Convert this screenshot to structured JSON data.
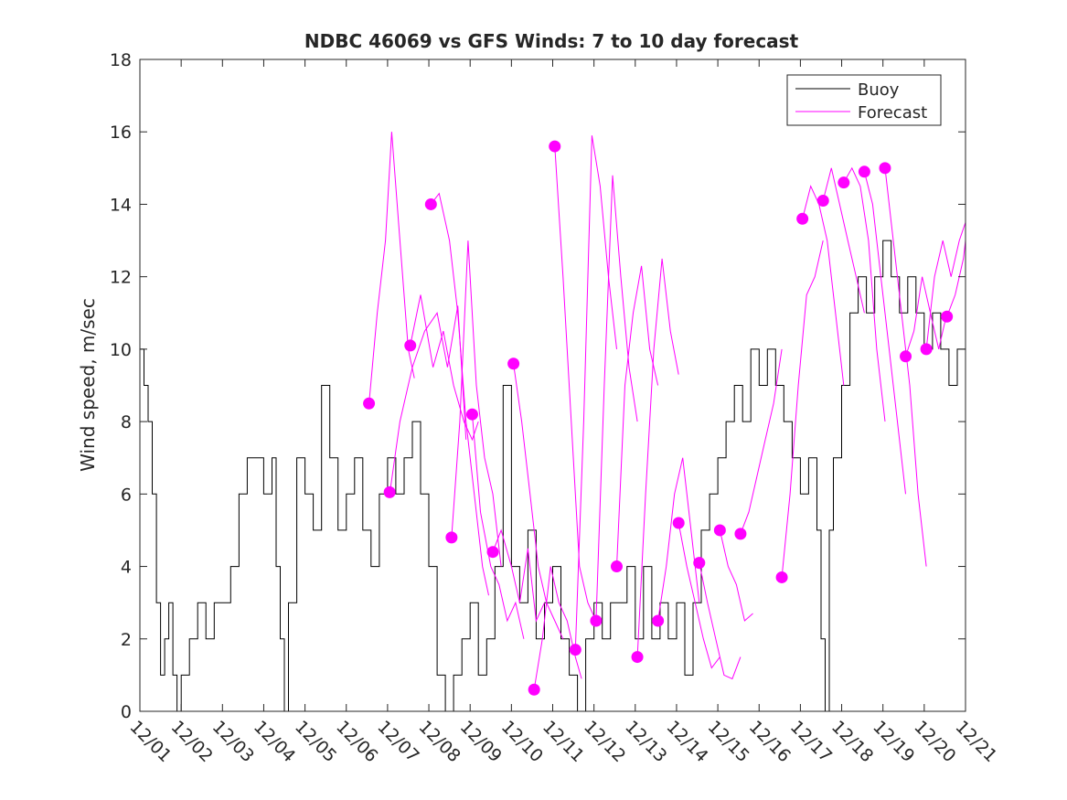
{
  "chart_data": {
    "type": "line",
    "title": "NDBC 46069 vs GFS Winds: 7 to 10 day forecast",
    "xlabel": "",
    "ylabel": "Wind speed, m/sec",
    "xlim": [
      0,
      20
    ],
    "ylim": [
      0,
      18
    ],
    "x_ticks": [
      0,
      1,
      2,
      3,
      4,
      5,
      6,
      7,
      8,
      9,
      10,
      11,
      12,
      13,
      14,
      15,
      16,
      17,
      18,
      19,
      20
    ],
    "x_tick_labels": [
      "12/01",
      "12/02",
      "12/03",
      "12/04",
      "12/05",
      "12/06",
      "12/07",
      "12/08",
      "12/09",
      "12/10",
      "12/11",
      "12/12",
      "12/13",
      "12/14",
      "12/15",
      "12/16",
      "12/17",
      "12/18",
      "12/19",
      "12/20",
      "12/21"
    ],
    "y_ticks": [
      0,
      2,
      4,
      6,
      8,
      10,
      12,
      14,
      16,
      18
    ],
    "y_tick_labels": [
      "0",
      "2",
      "4",
      "6",
      "8",
      "10",
      "12",
      "14",
      "16",
      "18"
    ],
    "legend": {
      "position": "top-right",
      "entries": [
        {
          "label": "Buoy",
          "color": "#000000"
        },
        {
          "label": "Forecast",
          "color": "#ff00ff"
        }
      ]
    },
    "colors": {
      "buoy": "#000000",
      "forecast": "#ff00ff",
      "axes": "#262626"
    },
    "buoy": {
      "name": "Buoy",
      "points": [
        [
          0.0,
          10
        ],
        [
          0.1,
          9
        ],
        [
          0.2,
          8
        ],
        [
          0.3,
          6
        ],
        [
          0.4,
          3
        ],
        [
          0.5,
          1
        ],
        [
          0.6,
          2
        ],
        [
          0.7,
          3
        ],
        [
          0.8,
          1
        ],
        [
          0.9,
          0
        ],
        [
          1.0,
          1
        ],
        [
          1.2,
          2
        ],
        [
          1.4,
          3
        ],
        [
          1.6,
          2
        ],
        [
          1.8,
          3
        ],
        [
          2.0,
          3
        ],
        [
          2.2,
          4
        ],
        [
          2.4,
          6
        ],
        [
          2.6,
          7
        ],
        [
          2.8,
          7
        ],
        [
          3.0,
          6
        ],
        [
          3.2,
          7
        ],
        [
          3.3,
          4
        ],
        [
          3.4,
          2
        ],
        [
          3.5,
          0
        ],
        [
          3.6,
          3
        ],
        [
          3.8,
          7
        ],
        [
          4.0,
          6
        ],
        [
          4.2,
          5
        ],
        [
          4.4,
          9
        ],
        [
          4.6,
          7
        ],
        [
          4.8,
          5
        ],
        [
          5.0,
          6
        ],
        [
          5.2,
          7
        ],
        [
          5.4,
          5
        ],
        [
          5.6,
          4
        ],
        [
          5.8,
          6
        ],
        [
          6.0,
          7
        ],
        [
          6.2,
          6
        ],
        [
          6.4,
          7
        ],
        [
          6.6,
          8
        ],
        [
          6.8,
          6
        ],
        [
          7.0,
          4
        ],
        [
          7.2,
          1
        ],
        [
          7.4,
          0
        ],
        [
          7.6,
          1
        ],
        [
          7.8,
          2
        ],
        [
          8.0,
          3
        ],
        [
          8.2,
          1
        ],
        [
          8.4,
          2
        ],
        [
          8.6,
          4
        ],
        [
          8.8,
          9
        ],
        [
          9.0,
          4
        ],
        [
          9.2,
          3
        ],
        [
          9.4,
          5
        ],
        [
          9.6,
          2
        ],
        [
          9.8,
          3
        ],
        [
          10.0,
          4
        ],
        [
          10.2,
          2
        ],
        [
          10.4,
          1
        ],
        [
          10.6,
          0
        ],
        [
          10.8,
          2
        ],
        [
          11.0,
          3
        ],
        [
          11.2,
          2
        ],
        [
          11.4,
          3
        ],
        [
          11.6,
          3
        ],
        [
          11.8,
          4
        ],
        [
          12.0,
          2
        ],
        [
          12.2,
          4
        ],
        [
          12.4,
          2
        ],
        [
          12.6,
          3
        ],
        [
          12.8,
          2
        ],
        [
          13.0,
          3
        ],
        [
          13.2,
          1
        ],
        [
          13.4,
          3
        ],
        [
          13.6,
          5
        ],
        [
          13.8,
          6
        ],
        [
          14.0,
          7
        ],
        [
          14.2,
          8
        ],
        [
          14.4,
          9
        ],
        [
          14.6,
          8
        ],
        [
          14.8,
          10
        ],
        [
          15.0,
          9
        ],
        [
          15.2,
          10
        ],
        [
          15.4,
          9
        ],
        [
          15.6,
          8
        ],
        [
          15.8,
          7
        ],
        [
          16.0,
          6
        ],
        [
          16.2,
          7
        ],
        [
          16.4,
          5
        ],
        [
          16.5,
          2
        ],
        [
          16.6,
          0
        ],
        [
          16.7,
          5
        ],
        [
          16.8,
          7
        ],
        [
          17.0,
          9
        ],
        [
          17.2,
          11
        ],
        [
          17.4,
          12
        ],
        [
          17.6,
          11
        ],
        [
          17.8,
          12
        ],
        [
          18.0,
          13
        ],
        [
          18.2,
          12
        ],
        [
          18.4,
          11
        ],
        [
          18.6,
          12
        ],
        [
          18.8,
          11
        ],
        [
          19.0,
          10
        ],
        [
          19.2,
          11
        ],
        [
          19.4,
          10
        ],
        [
          19.6,
          9
        ],
        [
          19.8,
          10
        ],
        [
          20.0,
          11
        ]
      ]
    },
    "forecast_series": [
      [
        [
          5.55,
          8.5
        ],
        [
          5.75,
          11.0
        ],
        [
          5.95,
          13.0
        ],
        [
          6.1,
          16.0
        ],
        [
          6.3,
          13.0
        ],
        [
          6.5,
          10.0
        ],
        [
          6.65,
          9.2
        ]
      ],
      [
        [
          6.05,
          6.0
        ],
        [
          6.3,
          8.0
        ],
        [
          6.6,
          9.5
        ],
        [
          6.9,
          10.5
        ],
        [
          7.2,
          11.0
        ],
        [
          7.45,
          9.5
        ],
        [
          7.7,
          11.2
        ],
        [
          7.9,
          7.5
        ]
      ],
      [
        [
          6.55,
          10.1
        ],
        [
          6.8,
          11.5
        ],
        [
          7.1,
          9.5
        ],
        [
          7.35,
          10.5
        ],
        [
          7.6,
          9.0
        ],
        [
          7.85,
          8.0
        ],
        [
          8.05,
          7.5
        ],
        [
          8.2,
          8.0
        ]
      ],
      [
        [
          7.05,
          14.0
        ],
        [
          7.25,
          14.3
        ],
        [
          7.5,
          13.0
        ],
        [
          7.7,
          11.0
        ],
        [
          7.9,
          8.0
        ],
        [
          8.1,
          6.0
        ],
        [
          8.3,
          4.0
        ],
        [
          8.45,
          3.2
        ]
      ],
      [
        [
          7.55,
          4.8
        ],
        [
          7.75,
          8.0
        ],
        [
          7.95,
          13.0
        ],
        [
          8.15,
          9.0
        ],
        [
          8.35,
          7.0
        ],
        [
          8.55,
          6.0
        ],
        [
          8.75,
          4.0
        ]
      ],
      [
        [
          8.05,
          8.2
        ],
        [
          8.25,
          5.5
        ],
        [
          8.5,
          4.0
        ],
        [
          8.7,
          3.5
        ],
        [
          8.9,
          2.5
        ],
        [
          9.1,
          3.0
        ],
        [
          9.3,
          2.0
        ]
      ],
      [
        [
          8.55,
          4.4
        ],
        [
          8.75,
          5.0
        ],
        [
          9.0,
          4.0
        ],
        [
          9.2,
          3.0
        ],
        [
          9.4,
          4.5
        ],
        [
          9.6,
          2.5
        ],
        [
          9.8,
          3.0
        ]
      ],
      [
        [
          9.05,
          9.6
        ],
        [
          9.25,
          8.0
        ],
        [
          9.45,
          6.0
        ],
        [
          9.65,
          4.0
        ],
        [
          9.85,
          3.0
        ],
        [
          10.05,
          2.5
        ],
        [
          10.25,
          2.0
        ]
      ],
      [
        [
          9.55,
          0.6
        ],
        [
          9.75,
          2.0
        ],
        [
          9.95,
          4.0
        ],
        [
          10.15,
          3.0
        ],
        [
          10.35,
          2.5
        ],
        [
          10.55,
          1.5
        ],
        [
          10.7,
          0.9
        ]
      ],
      [
        [
          10.05,
          15.6
        ],
        [
          10.25,
          12.0
        ],
        [
          10.45,
          8.0
        ],
        [
          10.65,
          4.0
        ],
        [
          10.85,
          3.0
        ],
        [
          11.05,
          2.5
        ]
      ],
      [
        [
          10.55,
          1.7
        ],
        [
          10.75,
          8.0
        ],
        [
          10.95,
          15.9
        ],
        [
          11.15,
          14.5
        ],
        [
          11.35,
          12.0
        ],
        [
          11.55,
          10.0
        ]
      ],
      [
        [
          11.05,
          2.5
        ],
        [
          11.25,
          9.0
        ],
        [
          11.45,
          14.8
        ],
        [
          11.65,
          12.0
        ],
        [
          11.85,
          9.5
        ],
        [
          12.05,
          8.0
        ]
      ],
      [
        [
          11.55,
          4.0
        ],
        [
          11.75,
          9.0
        ],
        [
          11.95,
          11.0
        ],
        [
          12.15,
          12.3
        ],
        [
          12.35,
          10.0
        ],
        [
          12.55,
          9.0
        ]
      ],
      [
        [
          12.05,
          1.5
        ],
        [
          12.25,
          6.0
        ],
        [
          12.45,
          10.0
        ],
        [
          12.65,
          12.5
        ],
        [
          12.85,
          10.5
        ],
        [
          13.05,
          9.3
        ]
      ],
      [
        [
          12.55,
          2.5
        ],
        [
          12.75,
          4.0
        ],
        [
          12.95,
          6.0
        ],
        [
          13.15,
          7.0
        ],
        [
          13.35,
          5.0
        ],
        [
          13.55,
          3.0
        ]
      ],
      [
        [
          13.05,
          5.2
        ],
        [
          13.25,
          4.0
        ],
        [
          13.45,
          3.0
        ],
        [
          13.65,
          2.0
        ],
        [
          13.85,
          1.2
        ],
        [
          14.05,
          1.5
        ]
      ],
      [
        [
          13.55,
          4.1
        ],
        [
          13.75,
          3.0
        ],
        [
          13.95,
          2.0
        ],
        [
          14.15,
          1.0
        ],
        [
          14.35,
          0.9
        ],
        [
          14.55,
          1.5
        ]
      ],
      [
        [
          14.05,
          5.0
        ],
        [
          14.25,
          4.0
        ],
        [
          14.45,
          3.5
        ],
        [
          14.65,
          2.5
        ],
        [
          14.85,
          2.7
        ]
      ],
      [
        [
          14.55,
          4.9
        ],
        [
          14.75,
          5.5
        ],
        [
          14.95,
          6.5
        ],
        [
          15.15,
          7.5
        ],
        [
          15.35,
          8.5
        ],
        [
          15.55,
          10.0
        ]
      ],
      [
        [
          15.55,
          3.7
        ],
        [
          15.75,
          6.0
        ],
        [
          15.95,
          9.0
        ],
        [
          16.15,
          11.5
        ],
        [
          16.35,
          12.0
        ],
        [
          16.55,
          13.0
        ]
      ],
      [
        [
          16.05,
          13.6
        ],
        [
          16.25,
          14.5
        ],
        [
          16.45,
          14.0
        ],
        [
          16.65,
          13.0
        ],
        [
          16.85,
          11.0
        ],
        [
          17.05,
          9.0
        ]
      ],
      [
        [
          16.55,
          14.1
        ],
        [
          16.75,
          15.0
        ],
        [
          16.95,
          14.0
        ],
        [
          17.15,
          13.0
        ],
        [
          17.35,
          12.0
        ],
        [
          17.55,
          11.0
        ]
      ],
      [
        [
          17.05,
          14.6
        ],
        [
          17.25,
          15.0
        ],
        [
          17.45,
          14.5
        ],
        [
          17.65,
          13.0
        ],
        [
          17.85,
          10.0
        ],
        [
          18.05,
          8.0
        ]
      ],
      [
        [
          17.55,
          14.9
        ],
        [
          17.75,
          14.0
        ],
        [
          17.95,
          12.0
        ],
        [
          18.15,
          10.0
        ],
        [
          18.35,
          8.0
        ],
        [
          18.55,
          6.0
        ]
      ],
      [
        [
          18.05,
          15.0
        ],
        [
          18.25,
          13.0
        ],
        [
          18.45,
          11.0
        ],
        [
          18.65,
          9.0
        ],
        [
          18.85,
          6.0
        ],
        [
          19.05,
          4.0
        ]
      ],
      [
        [
          18.55,
          9.8
        ],
        [
          18.75,
          10.5
        ],
        [
          18.95,
          12.0
        ],
        [
          19.15,
          11.0
        ],
        [
          19.35,
          10.0
        ],
        [
          19.55,
          11.0
        ]
      ],
      [
        [
          19.05,
          10.0
        ],
        [
          19.25,
          12.0
        ],
        [
          19.45,
          13.0
        ],
        [
          19.65,
          12.0
        ],
        [
          19.85,
          13.0
        ],
        [
          20.0,
          13.5
        ]
      ],
      [
        [
          19.55,
          10.9
        ],
        [
          19.75,
          11.5
        ],
        [
          19.95,
          12.5
        ],
        [
          20.0,
          13.0
        ]
      ]
    ],
    "forecast_markers": [
      [
        5.55,
        8.5
      ],
      [
        6.05,
        6.05
      ],
      [
        6.55,
        10.1
      ],
      [
        7.05,
        14.0
      ],
      [
        7.55,
        4.8
      ],
      [
        8.05,
        8.2
      ],
      [
        8.55,
        4.4
      ],
      [
        9.05,
        9.6
      ],
      [
        9.55,
        0.6
      ],
      [
        10.05,
        15.6
      ],
      [
        10.55,
        1.7
      ],
      [
        11.05,
        2.5
      ],
      [
        11.55,
        4.0
      ],
      [
        12.05,
        1.5
      ],
      [
        12.55,
        2.5
      ],
      [
        13.05,
        5.2
      ],
      [
        13.55,
        4.1
      ],
      [
        14.05,
        5.0
      ],
      [
        14.55,
        4.9
      ],
      [
        15.55,
        3.7
      ],
      [
        16.05,
        13.6
      ],
      [
        16.55,
        14.1
      ],
      [
        17.05,
        14.6
      ],
      [
        17.55,
        14.9
      ],
      [
        18.05,
        15.0
      ],
      [
        18.55,
        9.8
      ],
      [
        19.05,
        10.0
      ],
      [
        19.55,
        10.9
      ]
    ]
  }
}
